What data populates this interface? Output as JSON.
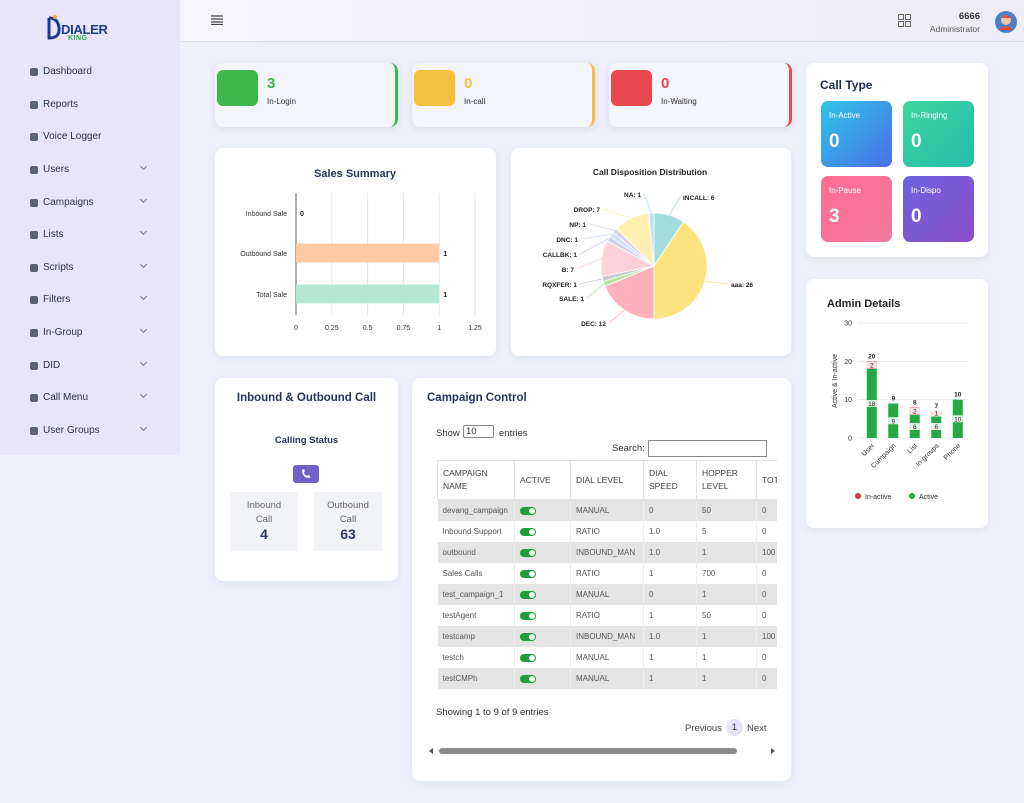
{
  "sidebar": {
    "logo": {
      "top": "DIALER",
      "bottom": "KING"
    },
    "menu": [
      {
        "label": "Dashboard",
        "submenu": false
      },
      {
        "label": "Reports",
        "submenu": false
      },
      {
        "label": "Voice Logger",
        "submenu": false
      },
      {
        "label": "Users",
        "submenu": true
      },
      {
        "label": "Campaigns",
        "submenu": true
      },
      {
        "label": "Lists",
        "submenu": true
      },
      {
        "label": "Scripts",
        "submenu": true
      },
      {
        "label": "Filters",
        "submenu": true
      },
      {
        "label": "In-Group",
        "submenu": true
      },
      {
        "label": "DID",
        "submenu": true
      },
      {
        "label": "Call Menu",
        "submenu": true
      },
      {
        "label": "User Groups",
        "submenu": true
      }
    ]
  },
  "header": {
    "user_id": "6666",
    "role": "Administrator"
  },
  "stats": [
    {
      "value": 3,
      "label": "In-Login",
      "color": "#3cb94b"
    },
    {
      "value": 0,
      "label": "In-call",
      "color": "#f5c040"
    },
    {
      "value": 0,
      "label": "In-Waiting",
      "color": "#e8474f"
    }
  ],
  "call_type": {
    "title": "Call Type",
    "tiles": [
      {
        "label": "In-Active",
        "value": 0
      },
      {
        "label": "In-Ringing",
        "value": 0
      },
      {
        "label": "In-Pause",
        "value": 3
      },
      {
        "label": "In-Dispo",
        "value": 0
      }
    ]
  },
  "chart_data": [
    {
      "type": "hbar",
      "title": "Sales Summary",
      "categories": [
        "Inbound Sale",
        "Outbound Sale",
        "Total Sale"
      ],
      "values": [
        0,
        1,
        1
      ],
      "colors": [
        "#ffc9a3",
        "#ffc9a3",
        "#b3e8d3"
      ],
      "xlim": [
        0,
        1.25
      ],
      "xticks": [
        0,
        0.25,
        0.5,
        0.75,
        1,
        1.25
      ],
      "grid": true
    },
    {
      "type": "pie",
      "title": "Call Disposition Distribution",
      "value_labels": [
        "INCALL: 6",
        "aaa: 26",
        "DEC: 12",
        "SALE: 1",
        "RQXFER: 1",
        "B: 7",
        "CALLBK: 1",
        "DNC: 1",
        "NP: 1",
        "DROP: 7",
        "NA: 1"
      ],
      "values": [
        6,
        26,
        12,
        1,
        1,
        7,
        1,
        1,
        1,
        7,
        1
      ],
      "colors": [
        "#a3dcdc",
        "#fde37f",
        "#ffb0bb",
        "#b5e5a5",
        "#c9cbcf",
        "#ffd2da",
        "#cdd1f2",
        "#cfe1f5",
        "#ddd1f1",
        "#fff0b2",
        "#b8e1f5"
      ]
    },
    {
      "type": "stacked_bar",
      "title": "Admin Details",
      "y_label": "Active & In-active",
      "categories": [
        "User",
        "Campaign",
        "List",
        "In-groups",
        "Phone"
      ],
      "series": [
        {
          "name": "In-active",
          "color": "#dc3545",
          "values": [
            2,
            0,
            2,
            1,
            0
          ]
        },
        {
          "name": "Active",
          "color": "#28a745",
          "values": [
            18,
            9,
            6,
            6,
            10
          ]
        }
      ],
      "totals": [
        20,
        9,
        8,
        7,
        10
      ],
      "ylim": [
        0,
        30
      ],
      "yticks": [
        0,
        10,
        20,
        30
      ],
      "grid": true
    }
  ],
  "inbound_outbound": {
    "title": "Inbound & Outbound Call",
    "subtitle": "Calling Status",
    "boxes": [
      {
        "label": "Inbound Call",
        "value": 4
      },
      {
        "label": "Outbound Call",
        "value": 63
      }
    ]
  },
  "campaign_control": {
    "title": "Campaign Control",
    "show": "Show",
    "page_size": "10",
    "entries": "entries",
    "search": "Search:",
    "columns": [
      "Campaign Name",
      "Active",
      "Dial Level",
      "Dial Speed",
      "Hopper Level",
      "Total Leads"
    ],
    "rows": [
      [
        "devang_campaign",
        true,
        "MANUAL",
        "0",
        "50",
        "0"
      ],
      [
        "Inbound Support",
        true,
        "RATIO",
        "1.0",
        "5",
        "0"
      ],
      [
        "outbound",
        true,
        "INBOUND_MAN",
        "1.0",
        "1",
        "100"
      ],
      [
        "Sales Calls",
        true,
        "RATIO",
        "1",
        "700",
        "0"
      ],
      [
        "test_campaign_1",
        true,
        "MANUAL",
        "0",
        "1",
        "0"
      ],
      [
        "testAgent",
        true,
        "RATIO",
        "1",
        "50",
        "0"
      ],
      [
        "testcamp",
        true,
        "INBOUND_MAN",
        "1.0",
        "1",
        "100"
      ],
      [
        "testch",
        true,
        "MANUAL",
        "1",
        "1",
        "0"
      ],
      [
        "testCMPh",
        true,
        "MANUAL",
        "1",
        "1",
        "0"
      ]
    ],
    "info": "Showing 1 to 9 of 9 entries",
    "previous": "Previous",
    "page": "1",
    "next": "Next"
  }
}
